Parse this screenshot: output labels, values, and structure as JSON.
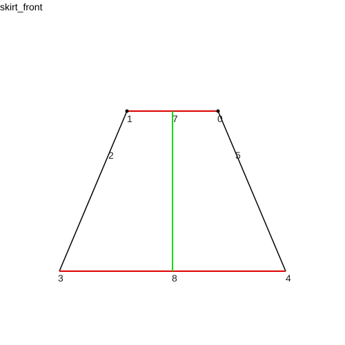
{
  "title": "skirt_front",
  "colors": {
    "edge": "#000000",
    "seam": "#dd0000",
    "grain": "#00dd00",
    "dot": "#000000"
  },
  "labels": {
    "p0": "0",
    "p1": "1",
    "p2": "2",
    "p3": "3",
    "p4": "4",
    "p5": "5",
    "p7": "7",
    "p8": "8"
  }
}
